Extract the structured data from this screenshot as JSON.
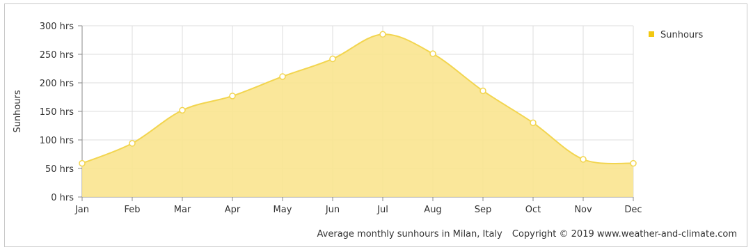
{
  "chart_data": {
    "type": "area",
    "categories": [
      "Jan",
      "Feb",
      "Mar",
      "Apr",
      "May",
      "Jun",
      "Jul",
      "Aug",
      "Sep",
      "Oct",
      "Nov",
      "Dec"
    ],
    "series": [
      {
        "name": "Sunhours",
        "values": [
          59,
          94,
          152,
          177,
          211,
          242,
          285,
          251,
          186,
          130,
          66,
          59
        ]
      }
    ],
    "ylabel": "Sunhours",
    "y_ticks": [
      "0 hrs",
      "50 hrs",
      "100 hrs",
      "150 hrs",
      "200 hrs",
      "250 hrs",
      "300 hrs"
    ],
    "ylim": [
      0,
      300
    ],
    "grid": true,
    "legend_position": "top-right",
    "colors": {
      "fill": "#fae48f",
      "line": "#f2d54f",
      "marker": "#ffffff",
      "legend_marker": "#f2c811"
    }
  },
  "footer": {
    "caption": "Average monthly sunhours in Milan, Italy",
    "copyright": "Copyright © 2019 www.weather-and-climate.com"
  }
}
